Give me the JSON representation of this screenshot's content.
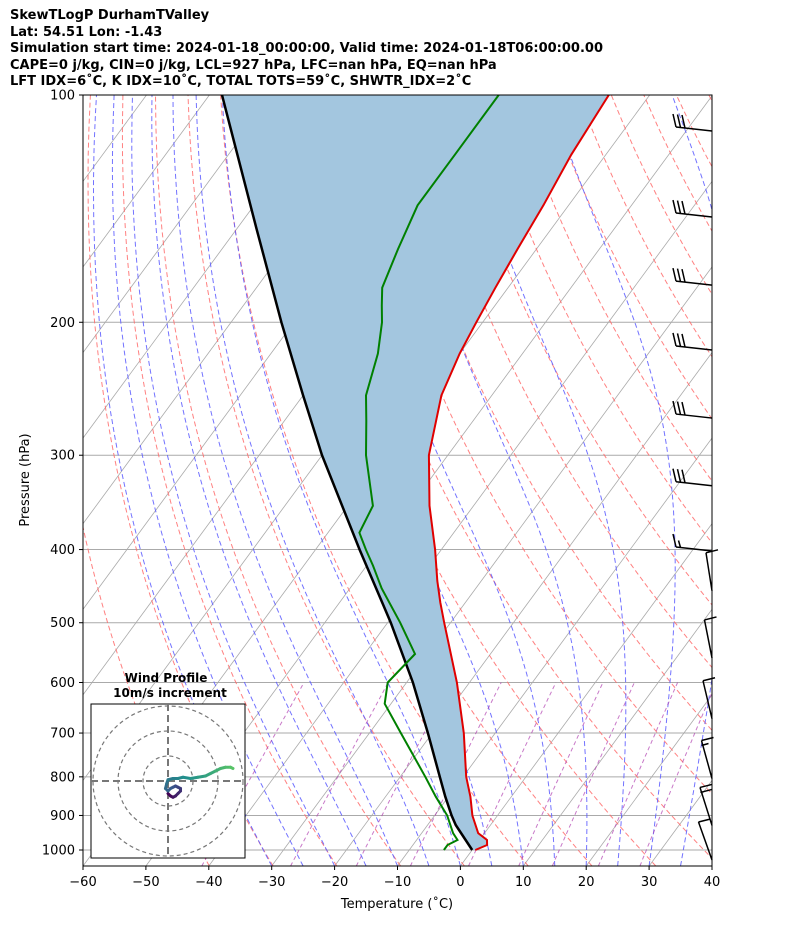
{
  "header": {
    "line1": "SkewTLogP DurhamTValley",
    "line2": "Lat: 54.51   Lon: -1.43",
    "line3": "Simulation start time: 2024-01-18_00:00:00, Valid time: 2024-01-18T06:00:00.00",
    "line4": "CAPE=0 j/kg, CIN=0 j/kg, LCL=927 hPa, LFC=nan hPa, EQ=nan hPa",
    "line5": "LFT IDX=6˚C, K IDX=10˚C, TOTAL TOTS=59˚C, SHWTR_IDX=2˚C"
  },
  "chart_data": {
    "type": "line",
    "subtype": "skew-T log-P",
    "xlabel": "Temperature (˚C)",
    "ylabel": "Pressure (hPa)",
    "xlim": [
      -60,
      40
    ],
    "ylim": [
      1050,
      100
    ],
    "yscale": "log",
    "xticks": [
      -60,
      -50,
      -40,
      -30,
      -20,
      -10,
      0,
      10,
      20,
      30,
      40
    ],
    "yticks": [
      100,
      200,
      300,
      400,
      500,
      600,
      700,
      800,
      900,
      1000
    ],
    "grid": true,
    "colors": {
      "temperature": "#e00000",
      "dewpoint": "#008000",
      "parcel": "#000000",
      "shade": "#a3c6df",
      "dry_adiabat": "#ff6b6b",
      "moist_adiabat": "#5a5aff",
      "mixing_ratio": "#b040b0",
      "isotherm": "#aaaaaa"
    },
    "series": [
      {
        "name": "temperature",
        "points": [
          [
            1000,
            0.5
          ],
          [
            985,
            1.8
          ],
          [
            970,
            1.2
          ],
          [
            950,
            -1
          ],
          [
            900,
            -4
          ],
          [
            850,
            -6.5
          ],
          [
            800,
            -9.5
          ],
          [
            700,
            -15
          ],
          [
            600,
            -22
          ],
          [
            500,
            -31
          ],
          [
            470,
            -34
          ],
          [
            440,
            -37
          ],
          [
            400,
            -41
          ],
          [
            350,
            -47
          ],
          [
            300,
            -53
          ],
          [
            250,
            -58
          ],
          [
            220,
            -60
          ],
          [
            200,
            -61
          ],
          [
            180,
            -62
          ],
          [
            160,
            -63
          ],
          [
            140,
            -64
          ],
          [
            120,
            -65.5
          ],
          [
            100,
            -66.5
          ]
        ]
      },
      {
        "name": "dewpoint",
        "points": [
          [
            1000,
            -4.5
          ],
          [
            985,
            -4.5
          ],
          [
            970,
            -3.5
          ],
          [
            950,
            -5
          ],
          [
            900,
            -8
          ],
          [
            850,
            -12
          ],
          [
            800,
            -16
          ],
          [
            700,
            -25
          ],
          [
            640,
            -31
          ],
          [
            600,
            -33
          ],
          [
            550,
            -32
          ],
          [
            500,
            -38
          ],
          [
            450,
            -45
          ],
          [
            420,
            -49
          ],
          [
            400,
            -52
          ],
          [
            380,
            -55
          ],
          [
            350,
            -56
          ],
          [
            300,
            -63
          ],
          [
            270,
            -67
          ],
          [
            250,
            -70
          ],
          [
            220,
            -73
          ],
          [
            200,
            -76
          ],
          [
            190,
            -78
          ],
          [
            180,
            -80
          ],
          [
            160,
            -82
          ],
          [
            140,
            -84
          ],
          [
            120,
            -84
          ],
          [
            100,
            -84
          ]
        ]
      },
      {
        "name": "parcel",
        "points": [
          [
            1000,
            0
          ],
          [
            927,
            -5.5
          ],
          [
            900,
            -7.3
          ],
          [
            850,
            -10.5
          ],
          [
            800,
            -13.7
          ],
          [
            700,
            -20.7
          ],
          [
            600,
            -29
          ],
          [
            500,
            -39.5
          ],
          [
            400,
            -53
          ],
          [
            300,
            -70
          ],
          [
            250,
            -80
          ],
          [
            200,
            -92
          ],
          [
            150,
            -107
          ],
          [
            100,
            -128
          ]
        ]
      }
    ],
    "wind_barbs": [
      {
        "p": 100,
        "flags": 0,
        "full": 3,
        "half": 0
      },
      {
        "p": 130,
        "flags": 0,
        "full": 3,
        "half": 0
      },
      {
        "p": 160,
        "flags": 0,
        "full": 3,
        "half": 0
      },
      {
        "p": 195,
        "flags": 0,
        "full": 3,
        "half": 0
      },
      {
        "p": 240,
        "flags": 0,
        "full": 3,
        "half": 0
      },
      {
        "p": 295,
        "flags": 0,
        "full": 3,
        "half": 0
      },
      {
        "p": 360,
        "flags": 0,
        "full": 1,
        "half": 1
      },
      {
        "p": 440,
        "flags": 0,
        "full": 1,
        "half": 0
      },
      {
        "p": 540,
        "flags": 0,
        "full": 1,
        "half": 0
      },
      {
        "p": 650,
        "flags": 0,
        "full": 1,
        "half": 0
      },
      {
        "p": 780,
        "flags": 0,
        "full": 1,
        "half": 1
      },
      {
        "p": 900,
        "flags": 0,
        "full": 2,
        "half": 0
      },
      {
        "p": 1000,
        "flags": 0,
        "full": 1,
        "half": 0
      }
    ],
    "inset": {
      "title_line1": "Wind Profile",
      "title_line2": "10m/s increment",
      "rings": 3,
      "hodograph_u": [
        0,
        1,
        2,
        3,
        4,
        5,
        5,
        4,
        3,
        2,
        1,
        0,
        -1,
        -0.5,
        0,
        2,
        4,
        6,
        9,
        12,
        15,
        17,
        19,
        21,
        23,
        25,
        26
      ],
      "hodograph_v": [
        -5,
        -6,
        -6.5,
        -6,
        -5,
        -4,
        -3,
        -2.5,
        -2,
        -2.5,
        -3,
        -4,
        -3,
        -1,
        0.5,
        1,
        1,
        1.5,
        1,
        1.5,
        2,
        3,
        4,
        5,
        5.5,
        5.5,
        5
      ]
    }
  }
}
